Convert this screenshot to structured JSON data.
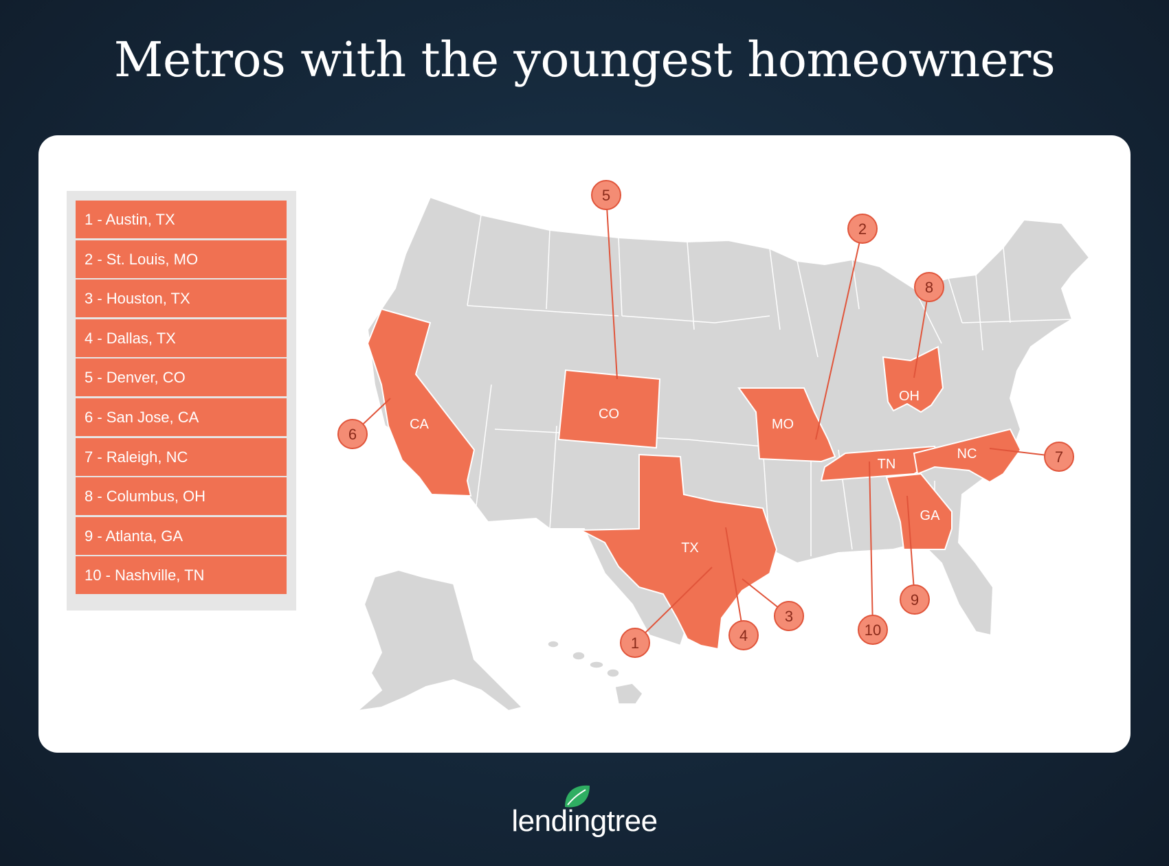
{
  "title": "Metros with the youngest homeowners",
  "legend": [
    "1 - Austin, TX",
    "2 - St. Louis, MO",
    "3 - Houston, TX",
    "4 - Dallas, TX",
    "5 - Denver, CO",
    "6 - San Jose, CA",
    "7 - Raleigh, NC",
    "8 - Columbus, OH",
    "9 - Atlanta, GA",
    "10 - Nashville, TN"
  ],
  "state_labels": {
    "ca": "CA",
    "co": "CO",
    "mo": "MO",
    "oh": "OH",
    "tn": "TN",
    "nc": "NC",
    "ga": "GA",
    "tx": "TX"
  },
  "markers": {
    "m1": "1",
    "m2": "2",
    "m3": "3",
    "m4": "4",
    "m5": "5",
    "m6": "6",
    "m7": "7",
    "m8": "8",
    "m9": "9",
    "m10": "10"
  },
  "colors": {
    "highlight": "#f07152",
    "marker_fill": "#f48c74",
    "marker_stroke": "#e0543a",
    "land": "#d6d6d6",
    "border": "#ffffff"
  },
  "logo": {
    "text": "lendingtree",
    "icon": "leaf-icon"
  }
}
